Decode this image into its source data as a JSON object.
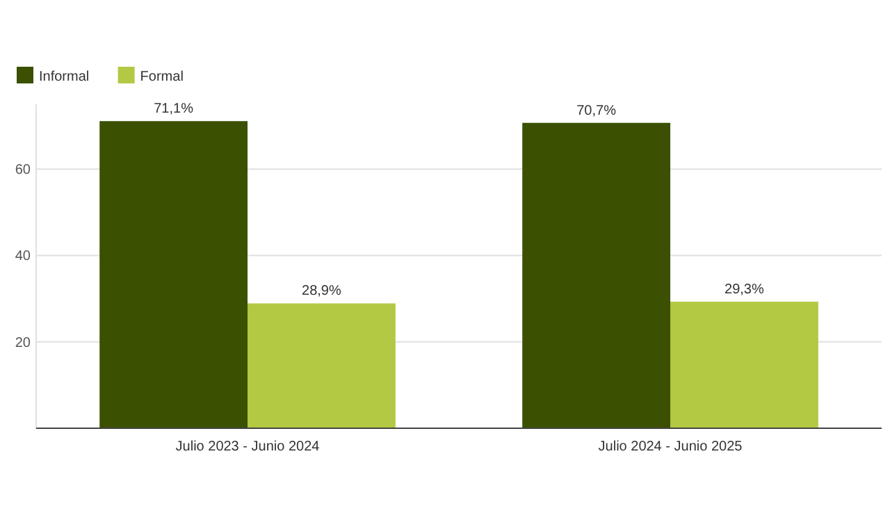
{
  "chart_data": {
    "type": "bar",
    "categories": [
      "Julio 2023 - Junio 2024",
      "Julio 2024 - Junio 2025"
    ],
    "series": [
      {
        "name": "Informal",
        "color": "#3b5000",
        "values": [
          71.1,
          70.7
        ],
        "value_labels": [
          "71,1%",
          "70,7%"
        ]
      },
      {
        "name": "Formal",
        "color": "#b3c843",
        "values": [
          28.9,
          29.3
        ],
        "value_labels": [
          "28,9%",
          "29,3%"
        ]
      }
    ],
    "ylim": [
      0,
      75
    ],
    "yticks": [
      20,
      40,
      60
    ],
    "grid": "y",
    "legend": "top left"
  }
}
